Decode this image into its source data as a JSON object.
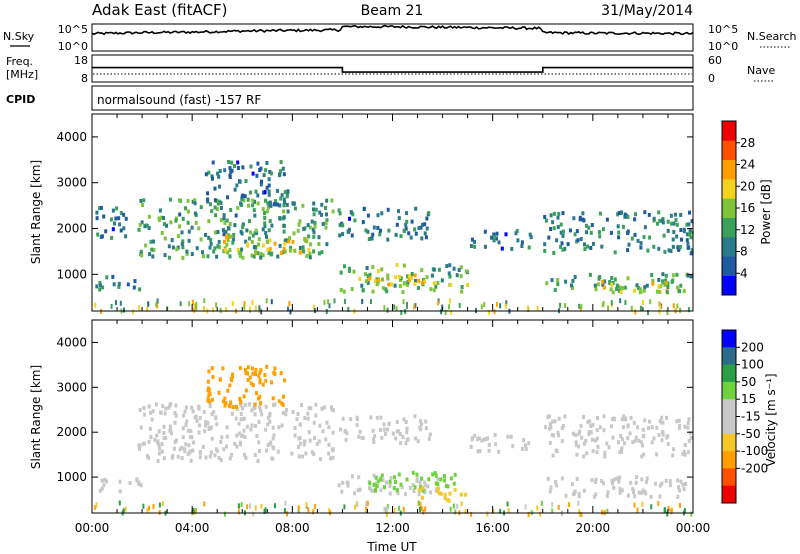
{
  "header": {
    "station": "Adak East (fitACF)",
    "beam": "Beam 21",
    "date": "31/May/2014"
  },
  "sky_panel": {
    "left_label": "N.Sky",
    "left_ticks": [
      "10^5",
      "10^0"
    ],
    "right_label": "N.Search",
    "right_ticks": [
      "10^5",
      "10^0"
    ]
  },
  "freq_panel": {
    "left_label_1": "Freq.",
    "left_label_2": "[MHz]",
    "left_ticks": [
      "18",
      "8"
    ],
    "right_label": "Nave",
    "right_ticks": [
      "60",
      "0"
    ]
  },
  "cpid_panel": {
    "label": "CPID",
    "text": "normalsound (fast) -157 RF"
  },
  "power_panel": {
    "ylabel": "Slant Range [km]",
    "colorbar_label": "Power [dB]"
  },
  "velocity_panel": {
    "ylabel": "Slant Range [km]",
    "colorbar_label": "Velocity [m s⁻¹]"
  },
  "x_axis": {
    "label": "Time UT"
  },
  "colors": {
    "power_scale": [
      "#0000ff",
      "#1e5aa0",
      "#2a7a8a",
      "#3aa05a",
      "#7ec43a",
      "#f5d21e",
      "#ffa000",
      "#ff5000",
      "#ee0000"
    ],
    "velocity_scale": [
      "#ee0000",
      "#ff5000",
      "#ffa000",
      "#f5c828",
      "#c8c8c8",
      "#c8c8c8",
      "#6ed23c",
      "#2aa046",
      "#2a6a8a",
      "#0000ff"
    ]
  },
  "chart_data": [
    {
      "type": "line",
      "name": "N.Sky / N.Search",
      "x": [
        0,
        2,
        4,
        6,
        8,
        9.9,
        10,
        12,
        14,
        16,
        17.9,
        18,
        20,
        22,
        24
      ],
      "y": [
        3.2,
        3.4,
        3.5,
        3.7,
        3.8,
        3.9,
        4.5,
        4.5,
        4.4,
        4.3,
        4.2,
        3.4,
        3.3,
        3.3,
        3.2
      ],
      "xlim": [
        0,
        24
      ],
      "ylim": [
        0,
        5
      ],
      "y_scale": "log"
    },
    {
      "type": "line",
      "name": "Freq",
      "x": [
        0,
        10,
        10,
        18,
        18,
        24
      ],
      "y": [
        13,
        13,
        10.5,
        10.5,
        13,
        13
      ],
      "xlim": [
        0,
        24
      ],
      "ylim": [
        5,
        20
      ],
      "ylabel": "Freq. [MHz]"
    },
    {
      "type": "heatmap",
      "name": "Power",
      "x_ticks": [
        "00:00",
        "04:00",
        "08:00",
        "12:00",
        "16:00",
        "20:00",
        "00:00"
      ],
      "y_ticks": [
        "1000",
        "2000",
        "3000",
        "4000"
      ],
      "xlim": [
        0,
        24
      ],
      "ylim": [
        200,
        4500
      ],
      "xlabel": "Time UT",
      "ylabel": "Slant Range [km]",
      "colorbar_ticks": [
        "4",
        "8",
        "12",
        "16",
        "20",
        "24",
        "28"
      ],
      "colorbar_range": [
        0,
        32
      ],
      "regions": [
        {
          "t0": 0.1,
          "t1": 1.5,
          "r0": 1800,
          "r1": 2500,
          "v": 8
        },
        {
          "t0": 0.1,
          "t1": 2.0,
          "r0": 700,
          "r1": 1000,
          "v": 9
        },
        {
          "t0": 1.8,
          "t1": 9.6,
          "r0": 1400,
          "r1": 2700,
          "v": 12
        },
        {
          "t0": 5.2,
          "t1": 8.8,
          "r0": 1500,
          "r1": 1900,
          "v": 20
        },
        {
          "t0": 4.5,
          "t1": 7.8,
          "r0": 2500,
          "r1": 3500,
          "v": 8
        },
        {
          "t0": 9.8,
          "t1": 13.5,
          "r0": 1800,
          "r1": 2500,
          "v": 8
        },
        {
          "t0": 9.8,
          "t1": 15.0,
          "r0": 650,
          "r1": 1250,
          "v": 14
        },
        {
          "t0": 11.0,
          "t1": 14.0,
          "r0": 800,
          "r1": 1050,
          "v": 20
        },
        {
          "t0": 15.0,
          "t1": 17.5,
          "r0": 1600,
          "r1": 2000,
          "v": 8
        },
        {
          "t0": 18.0,
          "t1": 24.0,
          "r0": 1500,
          "r1": 2400,
          "v": 9
        },
        {
          "t0": 18.0,
          "t1": 24.0,
          "r0": 650,
          "r1": 1050,
          "v": 12
        },
        {
          "t0": 20.0,
          "t1": 23.0,
          "r0": 650,
          "r1": 900,
          "v": 18
        }
      ]
    },
    {
      "type": "heatmap",
      "name": "Velocity",
      "x_ticks": [
        "00:00",
        "04:00",
        "08:00",
        "12:00",
        "16:00",
        "20:00",
        "00:00"
      ],
      "y_ticks": [
        "1000",
        "2000",
        "3000",
        "4000"
      ],
      "xlim": [
        0,
        24
      ],
      "ylim": [
        200,
        4500
      ],
      "xlabel": "Time UT",
      "ylabel": "Slant Range [km]",
      "colorbar_ticks": [
        "200",
        "100",
        "50",
        "15",
        "-15",
        "-50",
        "-100",
        "-200"
      ],
      "colorbar_range": [
        -250,
        250
      ],
      "regions": [
        {
          "t0": 0.1,
          "t1": 2.0,
          "r0": 700,
          "r1": 1000,
          "v": 0
        },
        {
          "t0": 1.8,
          "t1": 9.6,
          "r0": 1400,
          "r1": 2700,
          "v": 0
        },
        {
          "t0": 4.5,
          "t1": 7.8,
          "r0": 2600,
          "r1": 3500,
          "v": -60
        },
        {
          "t0": 9.8,
          "t1": 13.5,
          "r0": 1800,
          "r1": 2400,
          "v": 0
        },
        {
          "t0": 9.8,
          "t1": 14.0,
          "r0": 650,
          "r1": 1100,
          "v": 0
        },
        {
          "t0": 11.0,
          "t1": 14.5,
          "r0": 700,
          "r1": 1150,
          "v": 40
        },
        {
          "t0": 13.0,
          "t1": 15.0,
          "r0": 500,
          "r1": 800,
          "v": -30
        },
        {
          "t0": 15.0,
          "t1": 17.5,
          "r0": 1600,
          "r1": 2000,
          "v": 0
        },
        {
          "t0": 18.0,
          "t1": 24.0,
          "r0": 1500,
          "r1": 2400,
          "v": 0
        },
        {
          "t0": 18.0,
          "t1": 24.0,
          "r0": 600,
          "r1": 1050,
          "v": 0
        }
      ]
    }
  ]
}
